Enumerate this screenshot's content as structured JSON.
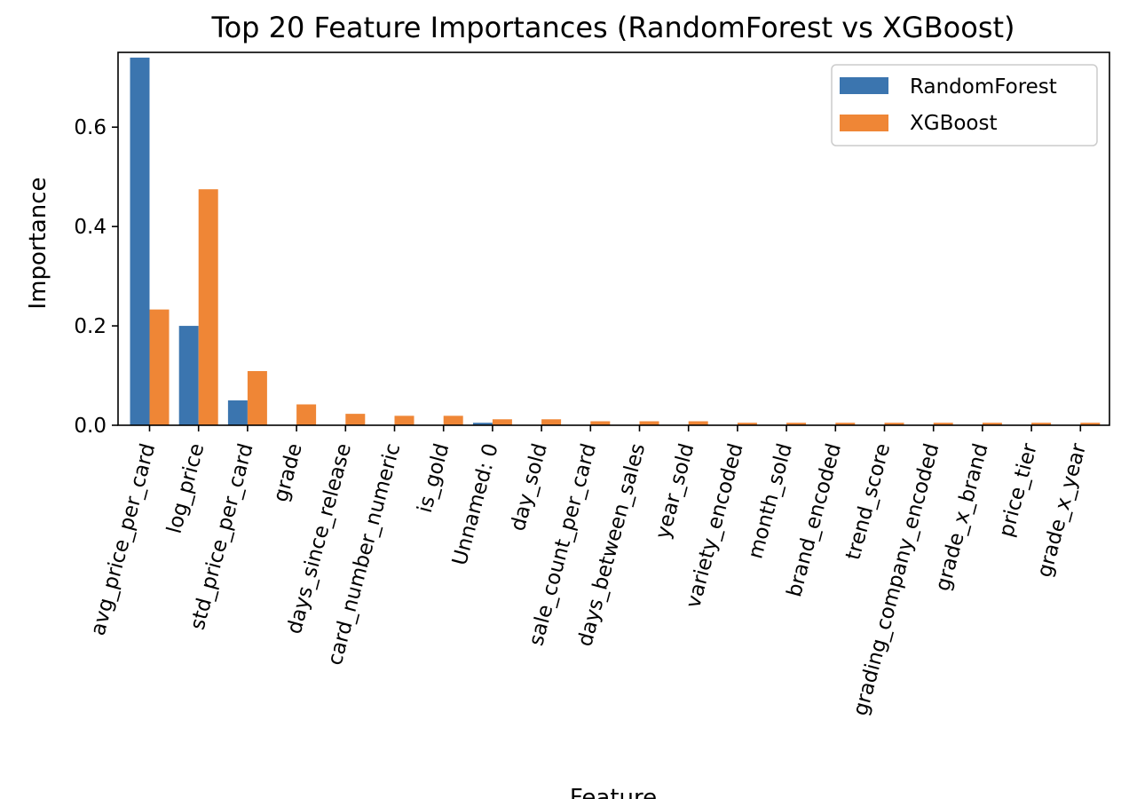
{
  "chart_data": {
    "type": "bar",
    "title": "Top 20 Feature Importances (RandomForest vs XGBoost)",
    "xlabel": "Feature",
    "ylabel": "Importance",
    "ylim": [
      0.0,
      0.7505
    ],
    "yticks": [
      "0.0",
      "0.2",
      "0.4",
      "0.6"
    ],
    "ytick_values": [
      0.0,
      0.2,
      0.4,
      0.6
    ],
    "categories": [
      "avg_price_per_card",
      "log_price",
      "std_price_per_card",
      "grade",
      "days_since_release",
      "card_number_numeric",
      "is_gold",
      "Unnamed: 0",
      "day_sold",
      "sale_count_per_card",
      "days_between_sales",
      "year_sold",
      "variety_encoded",
      "month_sold",
      "brand_encoded",
      "trend_score",
      "grading_company_encoded",
      "grade_x_brand",
      "price_tier",
      "grade_x_year"
    ],
    "series": [
      {
        "name": "RandomForest",
        "color": "#3b75af",
        "values": [
          0.74,
          0.2,
          0.05,
          0.0,
          0.0,
          0.0,
          0.0,
          0.005,
          0.0,
          0.0,
          0.0,
          0.0,
          0.0,
          0.0,
          0.0,
          0.0,
          0.0,
          0.0,
          0.0,
          0.0
        ]
      },
      {
        "name": "XGBoost",
        "color": "#ef8636",
        "values": [
          0.233,
          0.475,
          0.109,
          0.042,
          0.023,
          0.019,
          0.019,
          0.012,
          0.012,
          0.008,
          0.008,
          0.008,
          0.005,
          0.005,
          0.005,
          0.005,
          0.005,
          0.005,
          0.005,
          0.005
        ]
      }
    ],
    "legend_position": "top-right",
    "grid": false
  }
}
